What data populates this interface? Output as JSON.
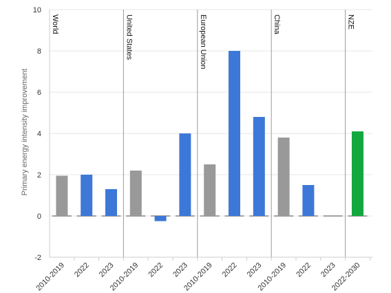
{
  "chart_data": {
    "type": "bar",
    "title": "",
    "xlabel": "",
    "ylabel": "Primary energy intensity improvement",
    "ylim": [
      -2,
      10
    ],
    "yticks": [
      -2,
      0,
      2,
      4,
      6,
      8,
      10
    ],
    "grid": true,
    "legend": "none",
    "colors": {
      "historical": "#999999",
      "recent": "#3d78d8",
      "nze": "#13a83e",
      "divider": "#999999"
    },
    "groups": [
      {
        "name": "World",
        "bars": [
          {
            "category": "2010-2019",
            "value": 1.95,
            "kind": "historical"
          },
          {
            "category": "2022",
            "value": 2.0,
            "kind": "recent"
          },
          {
            "category": "2023",
            "value": 1.3,
            "kind": "recent"
          }
        ]
      },
      {
        "name": "United States",
        "bars": [
          {
            "category": "2010-2019",
            "value": 2.2,
            "kind": "historical"
          },
          {
            "category": "2022",
            "value": -0.25,
            "kind": "recent"
          },
          {
            "category": "2023",
            "value": 4.0,
            "kind": "recent"
          }
        ]
      },
      {
        "name": "European Union",
        "bars": [
          {
            "category": "2010-2019",
            "value": 2.5,
            "kind": "historical"
          },
          {
            "category": "2022",
            "value": 8.0,
            "kind": "recent"
          },
          {
            "category": "2023",
            "value": 4.8,
            "kind": "recent"
          }
        ]
      },
      {
        "name": "China",
        "bars": [
          {
            "category": "2010-2019",
            "value": 3.8,
            "kind": "historical"
          },
          {
            "category": "2022",
            "value": 1.5,
            "kind": "recent"
          },
          {
            "category": "2023",
            "value": null,
            "kind": "recent"
          }
        ]
      },
      {
        "name": "NZE",
        "bars": [
          {
            "category": "2022-2030",
            "value": 4.1,
            "kind": "nze"
          }
        ]
      }
    ]
  }
}
